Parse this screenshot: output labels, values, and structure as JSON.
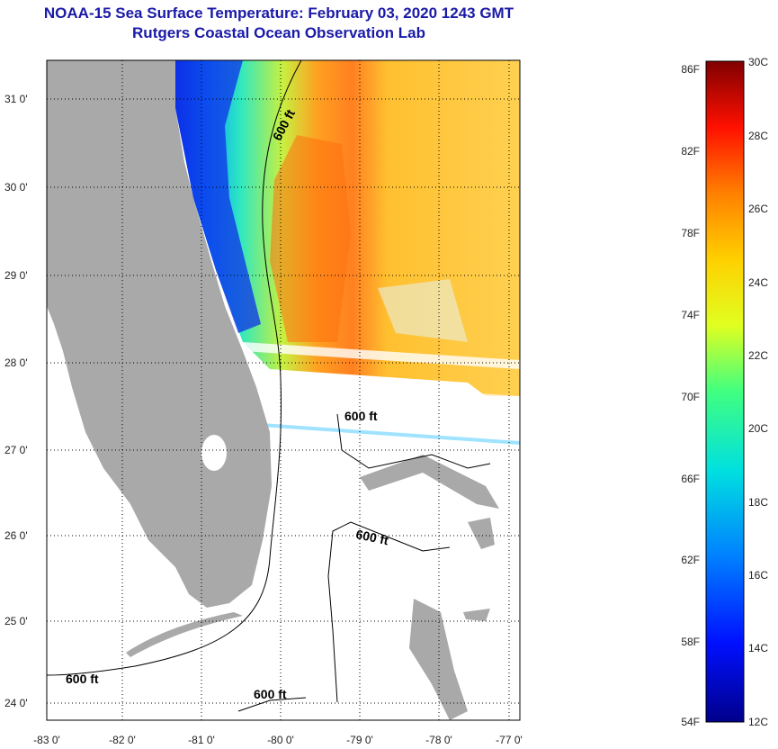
{
  "title_line1": "NOAA-15 Sea Surface Temperature:  February 03, 2020 1243 GMT",
  "title_line2": "Rutgers Coastal Ocean Observation Lab",
  "lat_labels": [
    "31 0'",
    "30 0'",
    "29 0'",
    "28 0'",
    "27 0'",
    "26 0'",
    "25 0'",
    "24 0'"
  ],
  "lon_labels": [
    "-83 0'",
    "-82 0'",
    "-81 0'",
    "-80 0'",
    "-79 0'",
    "-78 0'",
    "-77 0'"
  ],
  "contour_label": "600 ft",
  "colorbar": {
    "f_labels": [
      "86F",
      "82F",
      "78F",
      "74F",
      "70F",
      "66F",
      "62F",
      "58F",
      "54F"
    ],
    "c_labels": [
      "30C",
      "28C",
      "26C",
      "24C",
      "22C",
      "20C",
      "18C",
      "16C",
      "14C",
      "12C"
    ]
  },
  "colors": {
    "title": "#1a1aa8",
    "land": "#a9a9a9"
  }
}
